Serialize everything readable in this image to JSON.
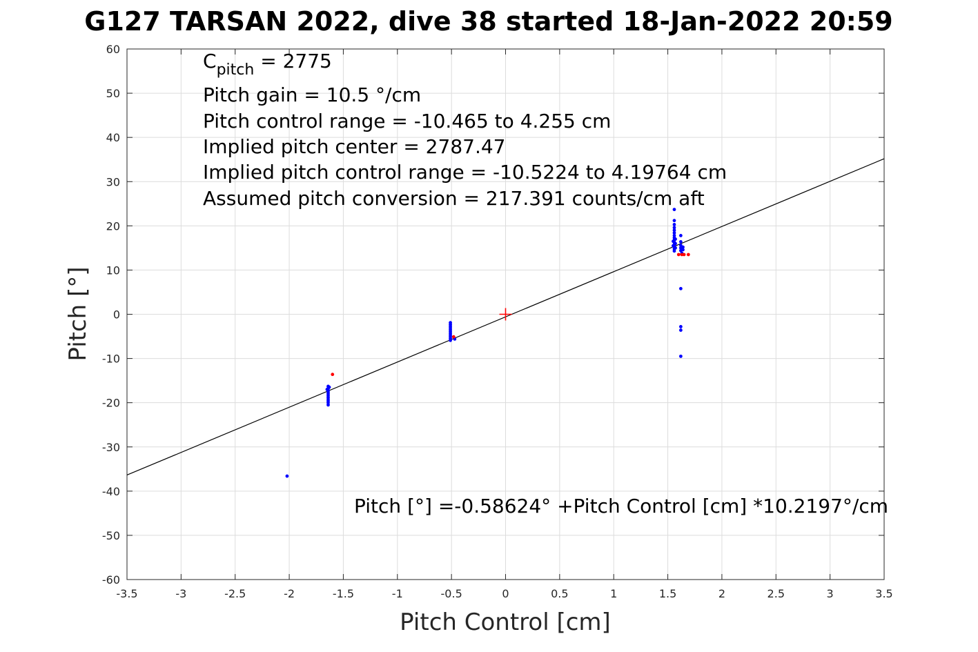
{
  "chart_data": {
    "type": "scatter",
    "title": "G127 TARSAN 2022, dive 38 started 18-Jan-2022 20:59",
    "xlabel": "Pitch Control [cm]",
    "ylabel": "Pitch [°]",
    "xlim": [
      -3.5,
      3.5
    ],
    "ylim": [
      -60,
      60
    ],
    "xticks": [
      "-3.5",
      "-3",
      "-2.5",
      "-2",
      "-1.5",
      "-1",
      "-0.5",
      "0",
      "0.5",
      "1",
      "1.5",
      "2",
      "2.5",
      "3",
      "3.5"
    ],
    "yticks": [
      "60",
      "50",
      "40",
      "30",
      "20",
      "10",
      "0",
      "-10",
      "-20",
      "-30",
      "-40",
      "-50",
      "-60"
    ],
    "grid": true,
    "annotations": {
      "c_pitch_base": "C",
      "c_pitch_sub": "pitch",
      "c_pitch_value": " = 2775",
      "pitch_gain": "Pitch gain = 10.5 °/cm",
      "control_range": "Pitch control range = -10.465 to 4.255 cm",
      "implied_center": "Implied pitch center = 2787.47",
      "implied_range": "Implied pitch control range = -10.5224 to 4.19764 cm",
      "conversion": "Assumed pitch conversion = 217.391 counts/cm aft",
      "fit_equation": "Pitch [°] =-0.58624° +Pitch Control [cm] *10.2197°/cm"
    },
    "fit_line": {
      "intercept": -0.58624,
      "slope": 10.2197,
      "color": "#000000"
    },
    "center_marker": {
      "x": 0,
      "y": 0,
      "color": "#ff0000"
    },
    "series": [
      {
        "color": "#0000ff",
        "points": [
          [
            -2.02,
            -36.6
          ],
          [
            -1.64,
            -16.3
          ],
          [
            -1.64,
            -16.8
          ],
          [
            -1.64,
            -17.2
          ],
          [
            -1.64,
            -17.6
          ],
          [
            -1.64,
            -18.0
          ],
          [
            -1.64,
            -18.4
          ],
          [
            -1.64,
            -18.8
          ],
          [
            -1.64,
            -19.2
          ],
          [
            -1.64,
            -19.6
          ],
          [
            -1.64,
            -20.0
          ],
          [
            -1.64,
            -20.5
          ],
          [
            -1.63,
            -16.5
          ],
          [
            -1.65,
            -17.0
          ],
          [
            -0.51,
            -1.9
          ],
          [
            -0.51,
            -2.3
          ],
          [
            -0.51,
            -2.7
          ],
          [
            -0.51,
            -3.1
          ],
          [
            -0.51,
            -3.5
          ],
          [
            -0.51,
            -3.9
          ],
          [
            -0.51,
            -4.3
          ],
          [
            -0.51,
            -4.7
          ],
          [
            -0.51,
            -5.1
          ],
          [
            -0.51,
            -5.5
          ],
          [
            -0.51,
            -5.9
          ],
          [
            -0.47,
            -5.6
          ],
          [
            1.56,
            23.7
          ],
          [
            1.56,
            21.2
          ],
          [
            1.56,
            20.3
          ],
          [
            1.56,
            19.6
          ],
          [
            1.56,
            19.0
          ],
          [
            1.56,
            18.4
          ],
          [
            1.56,
            17.8
          ],
          [
            1.56,
            17.3
          ],
          [
            1.56,
            16.8
          ],
          [
            1.56,
            16.3
          ],
          [
            1.56,
            15.8
          ],
          [
            1.56,
            15.3
          ],
          [
            1.56,
            14.8
          ],
          [
            1.56,
            14.3
          ],
          [
            1.57,
            17.0
          ],
          [
            1.57,
            16.0
          ],
          [
            1.57,
            15.0
          ],
          [
            1.55,
            16.5
          ],
          [
            1.55,
            15.5
          ],
          [
            1.62,
            17.8
          ],
          [
            1.62,
            16.4
          ],
          [
            1.62,
            15.6
          ],
          [
            1.62,
            15.0
          ],
          [
            1.62,
            14.4
          ],
          [
            1.62,
            5.8
          ],
          [
            1.62,
            -2.8
          ],
          [
            1.62,
            -3.6
          ],
          [
            1.62,
            -9.5
          ],
          [
            1.64,
            15.2
          ],
          [
            1.64,
            14.6
          ],
          [
            1.63,
            13.8
          ]
        ]
      },
      {
        "color": "#ff0000",
        "points": [
          [
            -1.6,
            -13.6
          ],
          [
            -0.48,
            -5.1
          ],
          [
            1.6,
            13.5
          ],
          [
            1.63,
            13.5
          ],
          [
            1.65,
            13.5
          ],
          [
            1.69,
            13.5
          ]
        ]
      }
    ]
  }
}
